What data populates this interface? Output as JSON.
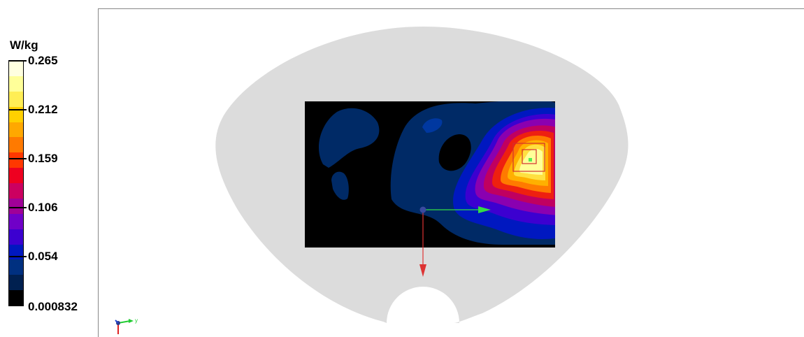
{
  "legend": {
    "unit": "W/kg",
    "labels": [
      "0.265",
      "0.212",
      "0.159",
      "0.106",
      "0.054",
      "0.000832"
    ],
    "colors": [
      "#ffffe0",
      "#ffff99",
      "#ffee55",
      "#ffd000",
      "#ffa800",
      "#ff7a00",
      "#ff3800",
      "#ee0020",
      "#cc0060",
      "#a00098",
      "#7000c8",
      "#3c00d0",
      "#0018c0",
      "#003080",
      "#002050",
      "#000000"
    ]
  },
  "axis_triad": {
    "label": "y"
  },
  "colors": {
    "phantom": "#dcdcdc",
    "scan_background": "#000000",
    "x_axis": "#33dd44",
    "z_axis": "#dd3333"
  }
}
